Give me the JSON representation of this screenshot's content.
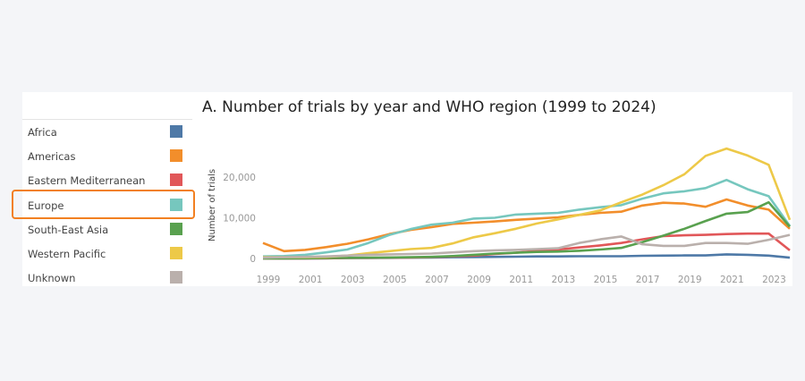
{
  "legend": {
    "items": [
      {
        "label": "Africa",
        "color": "#4e79a7"
      },
      {
        "label": "Americas",
        "color": "#f28e2b"
      },
      {
        "label": "Eastern Mediterranean",
        "color": "#e15759"
      },
      {
        "label": "Europe",
        "color": "#76c7be"
      },
      {
        "label": "South-East Asia",
        "color": "#59a14f"
      },
      {
        "label": "Western Pacific",
        "color": "#edc948"
      },
      {
        "label": "Unknown",
        "color": "#bab0ac"
      }
    ],
    "highlighted": "Europe",
    "highlight_color": "#f28021"
  },
  "chart_data": {
    "type": "line",
    "title": "A. Number  of trials by year and WHO region (1999 to 2024)",
    "xlabel": "",
    "ylabel": "Number of trials",
    "x": [
      1999,
      2000,
      2001,
      2002,
      2003,
      2004,
      2005,
      2006,
      2007,
      2008,
      2009,
      2010,
      2011,
      2012,
      2013,
      2014,
      2015,
      2016,
      2017,
      2018,
      2019,
      2020,
      2021,
      2022,
      2023,
      2024
    ],
    "x_tick_labels": [
      "1999",
      "2001",
      "2003",
      "2005",
      "2007",
      "2009",
      "2011",
      "2013",
      "2015",
      "2017",
      "2019",
      "2021",
      "2023"
    ],
    "y_tick_labels": [
      "0",
      "10,000",
      "20,000"
    ],
    "y_ticks": [
      0,
      10000,
      20000
    ],
    "ylim": [
      0,
      29000
    ],
    "grid": false,
    "legend_placement": "left",
    "series": [
      {
        "name": "Africa",
        "color": "#4e79a7",
        "values": [
          0,
          0,
          0,
          50,
          100,
          100,
          150,
          200,
          250,
          300,
          350,
          400,
          450,
          500,
          500,
          550,
          550,
          550,
          650,
          700,
          750,
          750,
          1000,
          900,
          700,
          200
        ]
      },
      {
        "name": "Americas",
        "color": "#f28e2b",
        "values": [
          3800,
          1800,
          2100,
          2800,
          3600,
          4700,
          6000,
          7000,
          7700,
          8500,
          8800,
          9100,
          9500,
          9800,
          10100,
          10700,
          11200,
          11500,
          13000,
          13700,
          13500,
          12700,
          14500,
          13000,
          12000,
          7300
        ]
      },
      {
        "name": "Eastern Mediterranean",
        "color": "#e15759",
        "values": [
          0,
          0,
          0,
          50,
          100,
          150,
          200,
          250,
          350,
          500,
          700,
          1100,
          1400,
          1900,
          2200,
          2700,
          3200,
          3800,
          4700,
          5500,
          5700,
          5800,
          6000,
          6100,
          6100,
          2000
        ]
      },
      {
        "name": "Europe",
        "color": "#76c7be",
        "values": [
          500,
          600,
          900,
          1500,
          2200,
          3800,
          5800,
          7200,
          8300,
          8800,
          9800,
          10000,
          10800,
          11000,
          11200,
          12000,
          12600,
          13100,
          14700,
          16000,
          16500,
          17300,
          19300,
          17000,
          15300,
          8000
        ]
      },
      {
        "name": "South-East Asia",
        "color": "#59a14f",
        "values": [
          0,
          0,
          50,
          100,
          150,
          200,
          250,
          300,
          400,
          600,
          900,
          1200,
          1400,
          1600,
          1700,
          1900,
          2200,
          2600,
          4000,
          5600,
          7300,
          9200,
          11000,
          11400,
          13800,
          7800
        ]
      },
      {
        "name": "Western Pacific",
        "color": "#edc948",
        "values": [
          300,
          300,
          300,
          400,
          700,
          1300,
          1800,
          2300,
          2600,
          3700,
          5200,
          6200,
          7300,
          8600,
          9600,
          10700,
          11800,
          13800,
          15700,
          18000,
          20700,
          25200,
          27000,
          25300,
          23000,
          9500
        ]
      },
      {
        "name": "Unknown",
        "color": "#bab0ac",
        "values": [
          200,
          300,
          400,
          500,
          700,
          900,
          1000,
          1100,
          1200,
          1500,
          1800,
          2000,
          2100,
          2300,
          2500,
          3800,
          4700,
          5400,
          3500,
          3100,
          3100,
          3800,
          3800,
          3600,
          4600,
          5800
        ]
      }
    ]
  }
}
